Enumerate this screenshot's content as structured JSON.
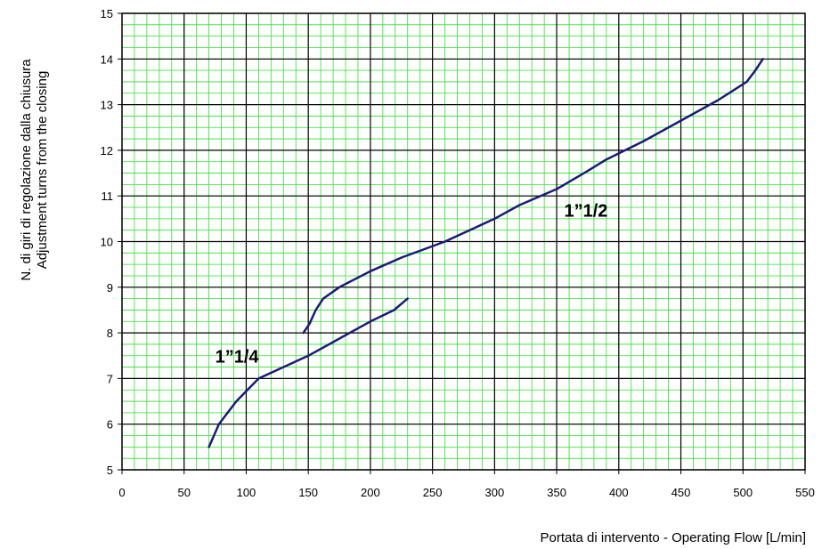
{
  "chart_data": {
    "type": "line",
    "title": "",
    "xlabel": "Portata di intervento - Operating Flow [L/min]",
    "ylabel": [
      "N. di giri di regolazione dalla chiusura",
      "Adjustment turns from the closing"
    ],
    "xlim": [
      0,
      550
    ],
    "ylim": [
      5,
      15
    ],
    "x_ticks": [
      "0",
      "50",
      "100",
      "150",
      "200",
      "250",
      "300",
      "350",
      "400",
      "450",
      "500",
      "550"
    ],
    "y_ticks": [
      "5",
      "6",
      "7",
      "8",
      "9",
      "10",
      "11",
      "12",
      "13",
      "14",
      "15"
    ],
    "grid": true,
    "legend": "none",
    "colors": {
      "minor_grid": "#33dd33",
      "major_grid": "#000000",
      "line": "#1a1a7a"
    },
    "series": [
      {
        "name": "1”1/4",
        "points": [
          [
            70,
            5.5
          ],
          [
            78,
            6.0
          ],
          [
            92,
            6.5
          ],
          [
            110,
            7.0
          ],
          [
            150,
            7.5
          ],
          [
            200,
            8.25
          ],
          [
            219,
            8.5
          ],
          [
            230,
            8.75
          ]
        ]
      },
      {
        "name": "1”1/2",
        "points": [
          [
            146,
            8.0
          ],
          [
            151,
            8.2
          ],
          [
            156,
            8.5
          ],
          [
            162,
            8.75
          ],
          [
            175,
            9.0
          ],
          [
            200,
            9.35
          ],
          [
            225,
            9.65
          ],
          [
            260,
            10.0
          ],
          [
            300,
            10.5
          ],
          [
            320,
            10.8
          ],
          [
            350,
            11.15
          ],
          [
            372,
            11.5
          ],
          [
            390,
            11.8
          ],
          [
            420,
            12.2
          ],
          [
            450,
            12.65
          ],
          [
            480,
            13.1
          ],
          [
            503,
            13.5
          ],
          [
            510,
            13.75
          ],
          [
            516,
            14.0
          ]
        ]
      }
    ],
    "annotations": [
      {
        "text": "1”1/4",
        "x": 75,
        "y": 7.35
      },
      {
        "text": "1”1/2",
        "x": 356,
        "y": 10.55
      }
    ]
  }
}
